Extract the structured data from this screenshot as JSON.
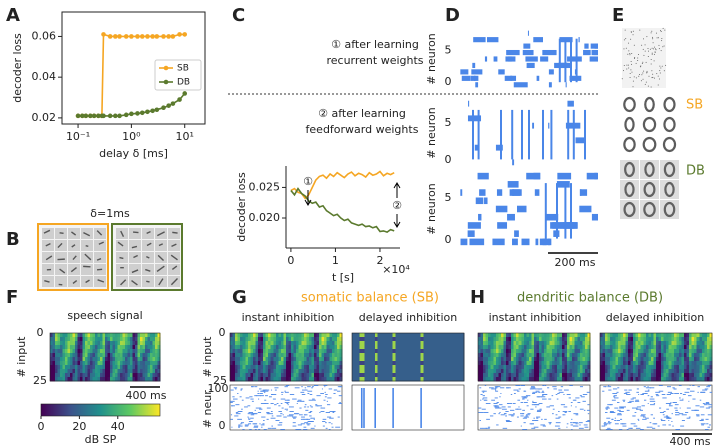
{
  "chart_data": [
    {
      "type": "line",
      "ylabel": "decoder loss",
      "xlabel": "delay δ [ms]",
      "log_x": true,
      "frame": "box",
      "markers": true,
      "xlim": [
        0.05,
        24
      ],
      "ylim": [
        0.017,
        0.072
      ],
      "xticks": [
        {
          "value": 0.1,
          "label": "10⁻¹"
        },
        {
          "value": 1,
          "label": "10⁰"
        },
        {
          "value": 10,
          "label": "10¹"
        }
      ],
      "yticks": [
        0.02,
        0.04,
        0.06
      ],
      "x": [
        0.1,
        0.12,
        0.14,
        0.17,
        0.2,
        0.24,
        0.28,
        0.3,
        0.4,
        0.5,
        0.6,
        0.8,
        1,
        1.3,
        1.6,
        2,
        2.5,
        3,
        4,
        5,
        6,
        8,
        10
      ],
      "series": [
        {
          "name": "SB",
          "color": "#f5a623",
          "values": [
            0.021,
            0.021,
            0.021,
            0.021,
            0.021,
            0.021,
            0.021,
            0.061,
            0.06,
            0.06,
            0.06,
            0.06,
            0.06,
            0.06,
            0.06,
            0.06,
            0.06,
            0.06,
            0.06,
            0.06,
            0.06,
            0.061,
            0.061
          ]
        },
        {
          "name": "DB",
          "color": "#5b7a2e",
          "values": [
            0.021,
            0.021,
            0.021,
            0.021,
            0.021,
            0.021,
            0.021,
            0.021,
            0.021,
            0.021,
            0.021,
            0.0215,
            0.022,
            0.0222,
            0.0225,
            0.023,
            0.0235,
            0.024,
            0.025,
            0.026,
            0.027,
            0.029,
            0.032
          ]
        }
      ],
      "legend": "center right"
    },
    {
      "type": "line",
      "ylabel": "decoder loss",
      "xlabel": "t [s]",
      "frame": "left-bottom",
      "x_offset_label": "×10⁴",
      "xlim": [
        -1100,
        24500
      ],
      "ylim": [
        0.0151,
        0.0285
      ],
      "xticks": [
        0,
        {
          "value": 10000,
          "label": "1"
        },
        {
          "value": 20000,
          "label": "2"
        }
      ],
      "yticks": [
        {
          "value": 0.02,
          "label": "0.020"
        },
        0.025
      ],
      "x": [
        0,
        800,
        1600,
        2400,
        3200,
        4000,
        4800,
        5600,
        6400,
        7200,
        8000,
        8800,
        9600,
        10400,
        11200,
        12000,
        12800,
        13600,
        14400,
        15200,
        16000,
        16800,
        17600,
        18400,
        19200,
        20000,
        20800,
        21600,
        22400,
        23200
      ],
      "series": [
        {
          "color": "#f5a623",
          "values": [
            0.0245,
            0.0248,
            0.0242,
            0.024,
            0.0232,
            0.0238,
            0.025,
            0.0262,
            0.0268,
            0.027,
            0.0265,
            0.0272,
            0.0268,
            0.0274,
            0.027,
            0.0266,
            0.0272,
            0.0275,
            0.0269,
            0.0273,
            0.0271,
            0.0267,
            0.0274,
            0.027,
            0.0272,
            0.0276,
            0.0269,
            0.0273,
            0.0271,
            0.0274
          ]
        },
        {
          "color": "#5b7a2e",
          "values": [
            0.0245,
            0.0238,
            0.0248,
            0.024,
            0.0236,
            0.0228,
            0.0224,
            0.0226,
            0.0218,
            0.022,
            0.0212,
            0.0208,
            0.0204,
            0.0206,
            0.02,
            0.0196,
            0.0198,
            0.0192,
            0.019,
            0.0188,
            0.019,
            0.0186,
            0.0187,
            0.0184,
            0.0186,
            0.0178,
            0.0179,
            0.0177,
            0.0181,
            0.0179
          ]
        }
      ],
      "annotations": [
        "①",
        "②"
      ]
    }
  ],
  "panel_labels": [
    "A",
    "B",
    "C",
    "D",
    "E",
    "F",
    "G",
    "H"
  ],
  "B": {
    "title": "δ=1ms"
  },
  "C": {
    "step1": [
      "① after learning",
      "recurrent weights"
    ],
    "step2": [
      "② after learning",
      "feedforward weights"
    ]
  },
  "D": {
    "ylabel": "# neuron",
    "yticks": [
      0,
      5
    ],
    "scalebar": "200 ms"
  },
  "E": {
    "labels": [
      "SB",
      "DB"
    ]
  },
  "F": {
    "title": "speech signal",
    "ylabel": "# input",
    "yticks": [
      0,
      25
    ],
    "scalebar": "400 ms",
    "colorbar": {
      "label": "dB SP",
      "lim": [
        0,
        62
      ],
      "ticks": [
        0,
        20,
        40
      ]
    }
  },
  "G": {
    "title": "somatic balance (SB)",
    "subtitles": [
      "instant inhibition",
      "delayed inhibition"
    ],
    "ylabel_top": "# input",
    "yticks_top": [
      0,
      25
    ],
    "ylabel_bottom": "# neur.",
    "yticks_bottom": [
      0,
      100
    ]
  },
  "H": {
    "title": "dendritic balance (DB)",
    "subtitles": [
      "instant inhibition",
      "delayed inhibition"
    ],
    "scalebar": "400 ms"
  }
}
